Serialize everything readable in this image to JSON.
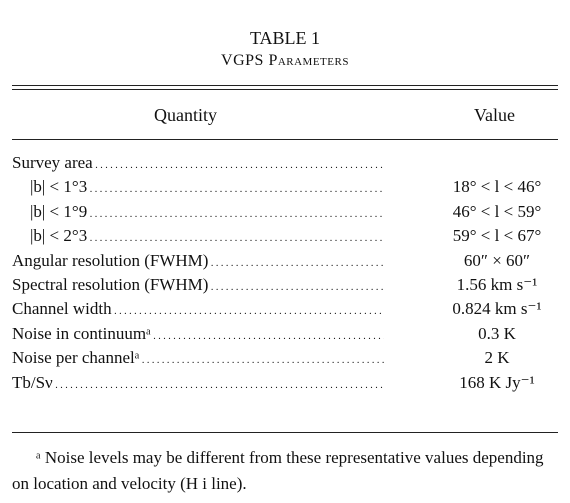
{
  "table": {
    "title": "TABLE 1",
    "subtitle": "VGPS Parameters",
    "headers": [
      "Quantity",
      "Value"
    ],
    "rows": [
      {
        "quantity": "Survey area",
        "value": null
      },
      {
        "quantity": "|b| < 1°3",
        "value": "18° < l < 46°"
      },
      {
        "quantity": "|b| < 1°9",
        "value": "46° < l < 59°"
      },
      {
        "quantity": "|b| < 2°3",
        "value": "59° < l < 67°"
      },
      {
        "quantity": "Angular resolution (FWHM)",
        "value": "60″ × 60″"
      },
      {
        "quantity": "Spectral resolution (FWHM)",
        "value": "1.56 km s⁻¹"
      },
      {
        "quantity": "Channel width",
        "value": "0.824 km s⁻¹"
      },
      {
        "quantity": "Noise in continuumᵃ",
        "value": "0.3 K"
      },
      {
        "quantity": "Noise per channelᵃ",
        "value": "2 K"
      },
      {
        "quantity": "Tb/Sν",
        "value": "168 K Jy⁻¹"
      }
    ],
    "footnote": "ᵃ Noise levels may be different from these representative values depending on location and velocity (H i line)."
  }
}
